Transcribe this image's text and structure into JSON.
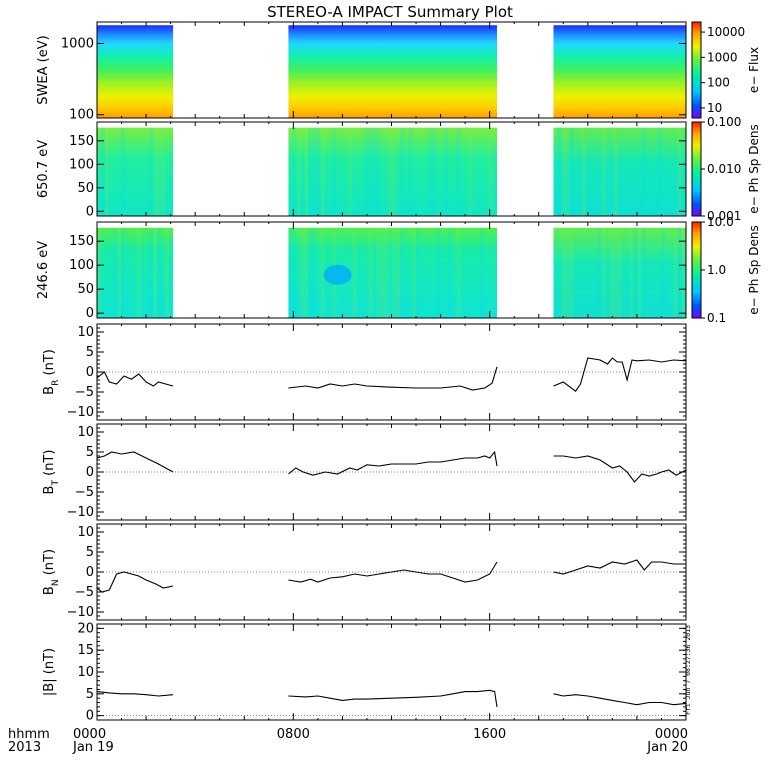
{
  "title": "STEREO-A IMPACT Summary Plot",
  "footer": {
    "row1_label": "hhmm",
    "row2_label": "2013",
    "timestamp": "Fri Jun  7 08:27:36 2013"
  },
  "x_axis": {
    "unit": "hours",
    "range": [
      0,
      24
    ],
    "data_gaps": [
      [
        3.1,
        7.8
      ],
      [
        16.3,
        18.6
      ]
    ],
    "ticks": [
      {
        "value": 0,
        "label": "0000",
        "sublabel": "Jan 19"
      },
      {
        "value": 8,
        "label": "0800",
        "sublabel": ""
      },
      {
        "value": 16,
        "label": "1600",
        "sublabel": ""
      },
      {
        "value": 24,
        "label": "0000",
        "sublabel": "Jan 20"
      }
    ]
  },
  "colors": {
    "trace": "#000000",
    "axes": "#000000",
    "colorscale": [
      "#7f00ff",
      "#0050ff",
      "#00c8ff",
      "#00f0a0",
      "#60f040",
      "#f0f000",
      "#ffa000",
      "#ff2000"
    ]
  },
  "chart_data": [
    {
      "type": "heatmap",
      "ylabel": "SWEA (eV)",
      "y_scale": "log",
      "ylim": [
        90,
        2000
      ],
      "yticks": [
        {
          "v": 100,
          "l": "100"
        },
        {
          "v": 1000,
          "l": "1000"
        }
      ],
      "colorbar": {
        "label": "e− Flux",
        "scale": "log",
        "range": [
          4,
          25000
        ],
        "ticks": [
          {
            "v": 10,
            "l": "10"
          },
          {
            "v": 100,
            "l": "100"
          },
          {
            "v": 1000,
            "l": "1000"
          },
          {
            "v": 10000,
            "l": "10000"
          }
        ]
      }
    },
    {
      "type": "heatmap",
      "ylabel": "650.7 eV",
      "ylim": [
        -10,
        190
      ],
      "yticks": [
        {
          "v": 0,
          "l": "0"
        },
        {
          "v": 50,
          "l": "50"
        },
        {
          "v": 100,
          "l": "100"
        },
        {
          "v": 150,
          "l": "150"
        }
      ],
      "colorbar": {
        "label": "e− Ph Sp Dens",
        "scale": "log",
        "range": [
          0.001,
          0.1
        ],
        "ticks": [
          {
            "v": 0.001,
            "l": "0.001"
          },
          {
            "v": 0.01,
            "l": "0.010"
          },
          {
            "v": 0.1,
            "l": "0.100"
          }
        ]
      }
    },
    {
      "type": "heatmap",
      "ylabel": "246.6 eV",
      "ylim": [
        -10,
        190
      ],
      "yticks": [
        {
          "v": 0,
          "l": "0"
        },
        {
          "v": 50,
          "l": "50"
        },
        {
          "v": 100,
          "l": "100"
        },
        {
          "v": 150,
          "l": "150"
        }
      ],
      "colorbar": {
        "label": "e− Ph Sp Dens",
        "scale": "log",
        "range": [
          0.1,
          10
        ],
        "ticks": [
          {
            "v": 0.1,
            "l": "0.1"
          },
          {
            "v": 1,
            "l": "1.0"
          },
          {
            "v": 10,
            "l": "10.0"
          }
        ]
      }
    },
    {
      "type": "line",
      "ylabel_main": "B",
      "ylabel_sub": "R",
      "ylabel_unit": " (nT)",
      "ylim": [
        -12,
        12
      ],
      "yticks": [
        {
          "v": -10,
          "l": "−10"
        },
        {
          "v": -5,
          "l": "−5"
        },
        {
          "v": 0,
          "l": "0"
        },
        {
          "v": 5,
          "l": "5"
        },
        {
          "v": 10,
          "l": "10"
        }
      ],
      "segments": [
        [
          [
            0,
            -1.5
          ],
          [
            0.3,
            0
          ],
          [
            0.5,
            -2.5
          ],
          [
            0.8,
            -3
          ],
          [
            1.1,
            -1
          ],
          [
            1.4,
            -1.8
          ],
          [
            1.7,
            -0.5
          ],
          [
            2.0,
            -2.5
          ],
          [
            2.3,
            -3.5
          ],
          [
            2.5,
            -2.5
          ],
          [
            2.8,
            -3
          ],
          [
            3.1,
            -3.5
          ]
        ],
        [
          [
            7.8,
            -4
          ],
          [
            8.5,
            -3.5
          ],
          [
            9.0,
            -4
          ],
          [
            9.5,
            -3
          ],
          [
            10.0,
            -3.5
          ],
          [
            10.5,
            -3
          ],
          [
            11.0,
            -3.5
          ],
          [
            12.0,
            -3.8
          ],
          [
            13.0,
            -4
          ],
          [
            14.0,
            -4
          ],
          [
            14.8,
            -3.5
          ],
          [
            15.3,
            -4.5
          ],
          [
            15.8,
            -4
          ],
          [
            16.1,
            -2.8
          ],
          [
            16.3,
            1.3
          ]
        ],
        [
          [
            18.6,
            -3.5
          ],
          [
            19.0,
            -2.5
          ],
          [
            19.5,
            -4.8
          ],
          [
            19.7,
            -3
          ],
          [
            20.0,
            3.5
          ],
          [
            20.5,
            3
          ],
          [
            20.8,
            2
          ],
          [
            21.0,
            3.5
          ],
          [
            21.2,
            2.5
          ],
          [
            21.4,
            2.5
          ],
          [
            21.6,
            -2
          ],
          [
            21.8,
            3
          ],
          [
            22.0,
            2.8
          ],
          [
            22.5,
            3
          ],
          [
            23.0,
            2.5
          ],
          [
            23.5,
            3
          ],
          [
            24.0,
            2.8
          ]
        ]
      ]
    },
    {
      "type": "line",
      "ylabel_main": "B",
      "ylabel_sub": "T",
      "ylabel_unit": " (nT)",
      "ylim": [
        -12,
        12
      ],
      "yticks": [
        {
          "v": -10,
          "l": "−10"
        },
        {
          "v": -5,
          "l": "−5"
        },
        {
          "v": 0,
          "l": "0"
        },
        {
          "v": 5,
          "l": "5"
        },
        {
          "v": 10,
          "l": "10"
        }
      ],
      "segments": [
        [
          [
            0,
            3.5
          ],
          [
            0.3,
            4
          ],
          [
            0.6,
            5
          ],
          [
            1.0,
            4.5
          ],
          [
            1.5,
            5
          ],
          [
            2.0,
            3.5
          ],
          [
            2.5,
            2
          ],
          [
            2.8,
            1
          ],
          [
            3.1,
            0
          ]
        ],
        [
          [
            7.8,
            -0.5
          ],
          [
            8.1,
            1
          ],
          [
            8.4,
            0
          ],
          [
            8.8,
            -0.8
          ],
          [
            9.3,
            0
          ],
          [
            9.8,
            -0.5
          ],
          [
            10.3,
            1
          ],
          [
            10.6,
            0.5
          ],
          [
            11.0,
            1.8
          ],
          [
            11.5,
            1.5
          ],
          [
            12.0,
            2
          ],
          [
            12.5,
            2
          ],
          [
            13.0,
            2
          ],
          [
            13.5,
            2.5
          ],
          [
            14.0,
            2.5
          ],
          [
            14.5,
            3
          ],
          [
            15.0,
            3.5
          ],
          [
            15.5,
            3.5
          ],
          [
            15.8,
            4
          ],
          [
            16.0,
            3.5
          ],
          [
            16.2,
            5
          ],
          [
            16.3,
            1.5
          ]
        ],
        [
          [
            18.6,
            4
          ],
          [
            19.0,
            4
          ],
          [
            19.5,
            3.5
          ],
          [
            20.0,
            4
          ],
          [
            20.5,
            3
          ],
          [
            21.0,
            1
          ],
          [
            21.3,
            1.5
          ],
          [
            21.6,
            0
          ],
          [
            21.9,
            -2.5
          ],
          [
            22.2,
            -0.5
          ],
          [
            22.5,
            -1
          ],
          [
            22.8,
            -0.5
          ],
          [
            23.0,
            0
          ],
          [
            23.3,
            0.5
          ],
          [
            23.6,
            -0.8
          ],
          [
            24.0,
            0.5
          ]
        ]
      ]
    },
    {
      "type": "line",
      "ylabel_main": "B",
      "ylabel_sub": "N",
      "ylabel_unit": " (nT)",
      "ylim": [
        -12,
        12
      ],
      "yticks": [
        {
          "v": -10,
          "l": "−10"
        },
        {
          "v": -5,
          "l": "−5"
        },
        {
          "v": 0,
          "l": "0"
        },
        {
          "v": 5,
          "l": "5"
        },
        {
          "v": 10,
          "l": "10"
        }
      ],
      "segments": [
        [
          [
            0,
            -4
          ],
          [
            0.2,
            -5
          ],
          [
            0.5,
            -4.5
          ],
          [
            0.8,
            -0.5
          ],
          [
            1.1,
            0
          ],
          [
            1.4,
            -0.5
          ],
          [
            1.7,
            -1
          ],
          [
            2.0,
            -2
          ],
          [
            2.4,
            -3
          ],
          [
            2.7,
            -4
          ],
          [
            3.1,
            -3.5
          ]
        ],
        [
          [
            7.8,
            -2
          ],
          [
            8.3,
            -2.5
          ],
          [
            8.7,
            -1.8
          ],
          [
            9.0,
            -2.5
          ],
          [
            9.5,
            -1.5
          ],
          [
            10.0,
            -1.2
          ],
          [
            10.5,
            -0.5
          ],
          [
            11.0,
            -1
          ],
          [
            11.5,
            -0.5
          ],
          [
            12.0,
            0
          ],
          [
            12.5,
            0.5
          ],
          [
            13.0,
            0
          ],
          [
            13.5,
            -0.5
          ],
          [
            14.0,
            -0.5
          ],
          [
            14.5,
            -1.5
          ],
          [
            15.0,
            -2.5
          ],
          [
            15.5,
            -2
          ],
          [
            16.0,
            -0.5
          ],
          [
            16.3,
            2.5
          ]
        ],
        [
          [
            18.6,
            0
          ],
          [
            19.0,
            -0.5
          ],
          [
            19.5,
            0.5
          ],
          [
            20.0,
            1.5
          ],
          [
            20.5,
            1
          ],
          [
            21.0,
            2.5
          ],
          [
            21.5,
            2
          ],
          [
            22.0,
            3
          ],
          [
            22.3,
            0.5
          ],
          [
            22.6,
            2.5
          ],
          [
            23.0,
            2.5
          ],
          [
            23.5,
            2
          ],
          [
            24.0,
            2
          ]
        ]
      ]
    },
    {
      "type": "line",
      "ylabel_main": "|B|",
      "ylabel_sub": "",
      "ylabel_unit": " (nT)",
      "ylim": [
        -1,
        21
      ],
      "yticks": [
        {
          "v": 0,
          "l": "0"
        },
        {
          "v": 5,
          "l": "5"
        },
        {
          "v": 10,
          "l": "10"
        },
        {
          "v": 15,
          "l": "15"
        },
        {
          "v": 20,
          "l": "20"
        }
      ],
      "segments": [
        [
          [
            0,
            5.5
          ],
          [
            0.5,
            5.2
          ],
          [
            1.0,
            5
          ],
          [
            1.5,
            5
          ],
          [
            2.0,
            4.8
          ],
          [
            2.5,
            4.5
          ],
          [
            3.1,
            4.8
          ]
        ],
        [
          [
            7.8,
            4.5
          ],
          [
            8.5,
            4.3
          ],
          [
            9.0,
            4.5
          ],
          [
            9.5,
            4
          ],
          [
            10.0,
            3.5
          ],
          [
            10.5,
            3.8
          ],
          [
            11.0,
            3.8
          ],
          [
            12.0,
            4
          ],
          [
            13.0,
            4.2
          ],
          [
            14.0,
            4.5
          ],
          [
            14.5,
            5
          ],
          [
            15.0,
            5.5
          ],
          [
            15.5,
            5.5
          ],
          [
            16.0,
            5.8
          ],
          [
            16.2,
            5.5
          ],
          [
            16.3,
            2
          ]
        ],
        [
          [
            18.6,
            5
          ],
          [
            19.0,
            4.5
          ],
          [
            19.5,
            4.8
          ],
          [
            20.0,
            4.5
          ],
          [
            20.5,
            4
          ],
          [
            21.0,
            3.5
          ],
          [
            21.5,
            3
          ],
          [
            22.0,
            2.5
          ],
          [
            22.5,
            3
          ],
          [
            23.0,
            3
          ],
          [
            23.5,
            2.5
          ],
          [
            24.0,
            2.8
          ]
        ]
      ]
    }
  ]
}
